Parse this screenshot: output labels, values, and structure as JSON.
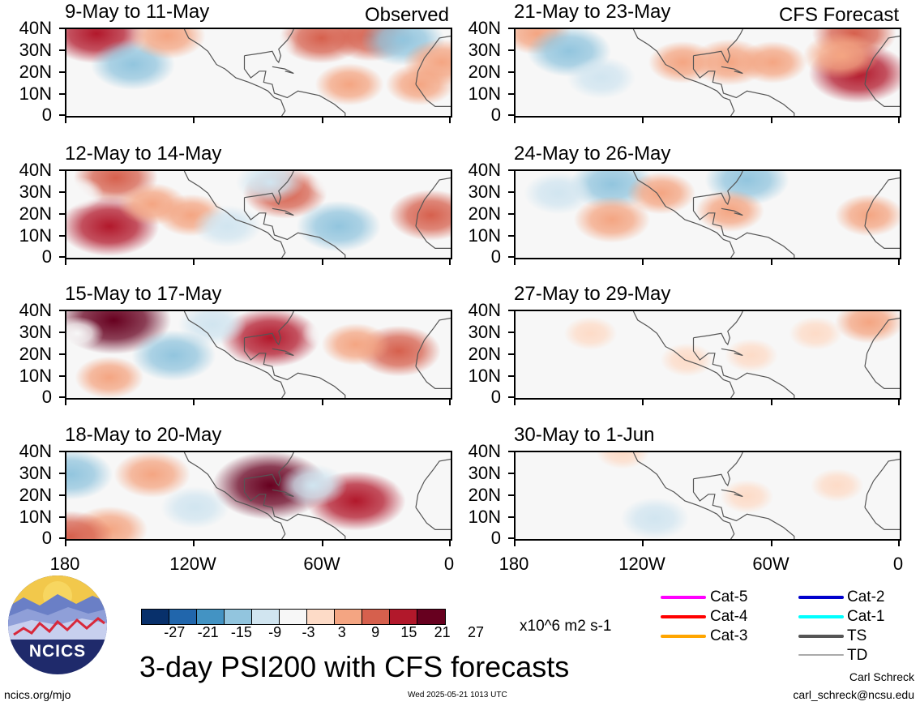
{
  "chart_data": [
    {
      "type": "heatmap",
      "title": "9-May to 11-May",
      "tag": "Observed",
      "ylabels": [
        "40N",
        "30N",
        "20N",
        "10N",
        "0"
      ],
      "xlabels": [
        "180",
        "120W",
        "60W",
        "0"
      ],
      "anomalies": [
        [
          -166,
          38,
          21
        ],
        [
          -149,
          24,
          -15
        ],
        [
          -133,
          37,
          12
        ],
        [
          -72,
          35,
          -3
        ],
        [
          -61,
          36,
          15
        ],
        [
          -38,
          37,
          15
        ],
        [
          -23,
          35,
          -15
        ],
        [
          -5,
          25,
          12
        ],
        [
          -15,
          15,
          9
        ],
        [
          -48,
          15,
          9
        ],
        [
          -85,
          32,
          -3
        ]
      ]
    },
    {
      "type": "heatmap",
      "title": "21-May to 23-May",
      "tag": "CFS Forecast",
      "ylabels": [
        "40N",
        "30N",
        "20N",
        "10N",
        "0"
      ],
      "xlabels": [
        "180",
        "120W",
        "60W",
        "0"
      ],
      "anomalies": [
        [
          -170,
          38,
          9
        ],
        [
          -155,
          30,
          -15
        ],
        [
          -140,
          18,
          -9
        ],
        [
          -102,
          25,
          9
        ],
        [
          -80,
          25,
          12
        ],
        [
          -60,
          25,
          9
        ],
        [
          -22,
          38,
          15
        ],
        [
          -20,
          20,
          21
        ],
        [
          -28,
          28,
          12
        ],
        [
          -118,
          10,
          -3
        ]
      ]
    },
    {
      "type": "heatmap",
      "title": "12-May to 14-May",
      "ylabels": [
        "40N",
        "30N",
        "20N",
        "10N",
        "0"
      ],
      "xlabels": [
        "180",
        "120W",
        "60W",
        "0"
      ],
      "anomalies": [
        [
          -157,
          37,
          15
        ],
        [
          -160,
          15,
          21
        ],
        [
          -140,
          25,
          9
        ],
        [
          -122,
          20,
          9
        ],
        [
          -78,
          30,
          15
        ],
        [
          -53,
          15,
          -15
        ],
        [
          -85,
          35,
          -9
        ],
        [
          -10,
          20,
          15
        ],
        [
          -105,
          15,
          -9
        ],
        [
          -55,
          35,
          -3
        ],
        [
          -175,
          30,
          -3
        ]
      ]
    },
    {
      "type": "heatmap",
      "title": "24-May to 26-May",
      "ylabels": [
        "40N",
        "30N",
        "20N",
        "10N",
        "0"
      ],
      "xlabels": [
        "180",
        "120W",
        "60W",
        "0"
      ],
      "anomalies": [
        [
          -135,
          34,
          -15
        ],
        [
          -160,
          30,
          -9
        ],
        [
          -72,
          36,
          -15
        ],
        [
          -80,
          22,
          9
        ],
        [
          -135,
          18,
          12
        ],
        [
          -15,
          20,
          9
        ],
        [
          -112,
          30,
          9
        ],
        [
          -170,
          15,
          -3
        ]
      ]
    },
    {
      "type": "heatmap",
      "title": "15-May to 17-May",
      "ylabels": [
        "40N",
        "30N",
        "20N",
        "10N",
        "0"
      ],
      "xlabels": [
        "180",
        "120W",
        "60W",
        "0"
      ],
      "anomalies": [
        [
          -158,
          36,
          27
        ],
        [
          -85,
          28,
          21
        ],
        [
          -112,
          34,
          -9
        ],
        [
          -130,
          20,
          -15
        ],
        [
          -160,
          10,
          9
        ],
        [
          -25,
          22,
          15
        ],
        [
          -58,
          30,
          -3
        ],
        [
          -45,
          25,
          9
        ],
        [
          -175,
          30,
          -3
        ]
      ]
    },
    {
      "type": "heatmap",
      "title": "27-May to 29-May",
      "ylabels": [
        "40N",
        "30N",
        "20N",
        "10N",
        "0"
      ],
      "xlabels": [
        "180",
        "120W",
        "60W",
        "0"
      ],
      "anomalies": [
        [
          -170,
          25,
          -3
        ],
        [
          -15,
          35,
          9
        ],
        [
          -70,
          20,
          3
        ],
        [
          -100,
          18,
          3
        ],
        [
          -145,
          30,
          3
        ],
        [
          -40,
          30,
          3
        ]
      ]
    },
    {
      "type": "heatmap",
      "title": "18-May to 20-May",
      "ylabels": [
        "40N",
        "30N",
        "20N",
        "10N",
        "0"
      ],
      "xlabels": [
        "180",
        "120W",
        "60W",
        "0"
      ],
      "anomalies": [
        [
          -178,
          30,
          -15
        ],
        [
          -140,
          30,
          12
        ],
        [
          -85,
          25,
          27
        ],
        [
          -45,
          18,
          21
        ],
        [
          -160,
          5,
          12
        ],
        [
          -120,
          15,
          -9
        ],
        [
          -65,
          25,
          -9
        ],
        [
          -15,
          25,
          -3
        ],
        [
          -178,
          2,
          15
        ]
      ]
    },
    {
      "type": "heatmap",
      "title": "30-May to 1-Jun",
      "ylabels": [
        "40N",
        "30N",
        "20N",
        "10N",
        "0"
      ],
      "xlabels": [
        "180",
        "120W",
        "60W",
        "0"
      ],
      "anomalies": [
        [
          -150,
          12,
          -3
        ],
        [
          -115,
          10,
          -9
        ],
        [
          -95,
          30,
          -3
        ],
        [
          -72,
          20,
          3
        ],
        [
          -30,
          25,
          3
        ],
        [
          -130,
          40,
          3
        ],
        [
          -55,
          35,
          -3
        ]
      ]
    }
  ],
  "colorbar": {
    "colors": [
      "#08306b",
      "#2166ac",
      "#4393c3",
      "#92c5de",
      "#d1e5f0",
      "#f7f7f7",
      "#fddbc7",
      "#f4a582",
      "#d6604d",
      "#b2182b",
      "#67001f"
    ],
    "labels": [
      "-27",
      "-21",
      "-15",
      "-9",
      "-3",
      "3",
      "9",
      "15",
      "21",
      "27"
    ],
    "units": "x10^6 m2 s-1"
  },
  "legend": {
    "left": [
      {
        "label": "Cat-5",
        "color": "#ff00ff"
      },
      {
        "label": "Cat-4",
        "color": "#ff0000"
      },
      {
        "label": "Cat-3",
        "color": "#ffa500"
      }
    ],
    "right": [
      {
        "label": "Cat-2",
        "color": "#0000cd"
      },
      {
        "label": "Cat-1",
        "color": "#00ffff"
      },
      {
        "label": "TS",
        "color": "#555555"
      },
      {
        "label": "TD",
        "color": "#aaaaaa"
      }
    ]
  },
  "footer": {
    "title": "3-day PSI200 with CFS forecasts",
    "site": "ncics.org/mjo",
    "timestamp": "Wed 2025-05-21 1013 UTC",
    "author": "Carl Schreck",
    "email": "carl_schreck@ncsu.edu",
    "logo_text": "NCICS"
  }
}
